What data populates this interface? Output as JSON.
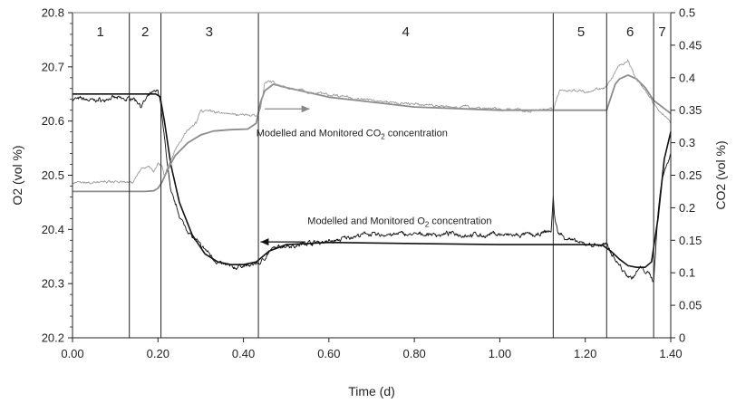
{
  "chart_data": {
    "type": "line",
    "title": "",
    "xlabel": "Time (d)",
    "ylabel_left": "O2 (vol %)",
    "ylabel_right": "CO2 (vol %)",
    "xlim": [
      0,
      1.4
    ],
    "ylim_left": [
      20.2,
      20.8
    ],
    "ylim_right": [
      0,
      0.5
    ],
    "x_ticks": [
      "0.00",
      "0.20",
      "0.40",
      "0.60",
      "0.80",
      "1.00",
      "1.20",
      "1.40"
    ],
    "y_left_ticks": [
      "20.2",
      "20.3",
      "20.4",
      "20.5",
      "20.6",
      "20.7",
      "20.8"
    ],
    "y_right_ticks": [
      "0",
      "0.05",
      "0.1",
      "0.15",
      "0.2",
      "0.25",
      "0.3",
      "0.35",
      "0.4",
      "0.45",
      "0.5"
    ],
    "grid": false,
    "phase_boundaries": [
      0.133,
      0.207,
      0.435,
      1.125,
      1.25,
      1.36
    ],
    "phases": [
      {
        "label": "1",
        "x": 0.065
      },
      {
        "label": "2",
        "x": 0.17
      },
      {
        "label": "3",
        "x": 0.32
      },
      {
        "label": "4",
        "x": 0.78
      },
      {
        "label": "5",
        "x": 1.19
      },
      {
        "label": "6",
        "x": 1.305
      },
      {
        "label": "7",
        "x": 1.38
      }
    ],
    "annotations": [
      {
        "text_main": "Modelled and Monitored CO",
        "sub": "2",
        "text_tail": " concentration",
        "axis": "right",
        "x": 0.43,
        "y": 0.31
      },
      {
        "text_main": "Modelled and Monitored O",
        "sub": "2",
        "text_tail": " concentration",
        "axis": "left",
        "x": 0.55,
        "y": 20.41
      }
    ],
    "arrows": [
      {
        "axis": "right",
        "x1": 0.45,
        "y1": 0.352,
        "x2": 0.555,
        "y2": 0.352,
        "color": "#888888"
      },
      {
        "axis": "left",
        "x1": 0.545,
        "y1": 20.377,
        "x2": 0.44,
        "y2": 20.377,
        "color": "#111111"
      }
    ],
    "series": [
      {
        "name": "Modelled O2",
        "axis": "left",
        "color": "#111111",
        "width": 1.6,
        "noise": 0,
        "x": [
          0,
          0.15,
          0.195,
          0.205,
          0.215,
          0.23,
          0.25,
          0.28,
          0.31,
          0.34,
          0.37,
          0.4,
          0.43,
          0.46,
          0.5,
          0.6,
          0.8,
          1.0,
          1.2,
          1.24,
          1.26,
          1.28,
          1.3,
          1.32,
          1.34,
          1.355,
          1.37,
          1.385,
          1.4
        ],
        "y": [
          20.65,
          20.65,
          20.65,
          20.645,
          20.6,
          20.52,
          20.45,
          20.39,
          20.355,
          20.34,
          20.335,
          20.335,
          20.34,
          20.36,
          20.372,
          20.376,
          20.374,
          20.372,
          20.372,
          20.371,
          20.36,
          20.345,
          20.333,
          20.33,
          20.33,
          20.34,
          20.42,
          20.53,
          20.58
        ]
      },
      {
        "name": "Monitored O2",
        "axis": "left",
        "color": "#111111",
        "width": 0.9,
        "noise": 0.006,
        "x": [
          0,
          0.13,
          0.14,
          0.16,
          0.18,
          0.2,
          0.205,
          0.215,
          0.23,
          0.26,
          0.3,
          0.34,
          0.38,
          0.42,
          0.44,
          0.46,
          0.5,
          0.6,
          0.7,
          0.8,
          0.9,
          1.0,
          1.05,
          1.1,
          1.12,
          1.125,
          1.128,
          1.135,
          1.15,
          1.2,
          1.25,
          1.27,
          1.29,
          1.31,
          1.33,
          1.35,
          1.36,
          1.37,
          1.38,
          1.4
        ],
        "y": [
          20.64,
          20.64,
          20.645,
          20.63,
          20.645,
          20.655,
          20.64,
          20.57,
          20.47,
          20.41,
          20.37,
          20.34,
          20.33,
          20.335,
          20.34,
          20.36,
          20.37,
          20.38,
          20.39,
          20.39,
          20.39,
          20.39,
          20.385,
          20.39,
          20.395,
          20.46,
          20.42,
          20.395,
          20.385,
          20.37,
          20.37,
          20.35,
          20.325,
          20.315,
          20.33,
          20.315,
          20.305,
          20.43,
          20.5,
          20.54
        ]
      },
      {
        "name": "Modelled CO2",
        "axis": "right",
        "color": "#8c8c8c",
        "width": 1.8,
        "noise": 0,
        "x": [
          0,
          0.17,
          0.19,
          0.2,
          0.21,
          0.22,
          0.24,
          0.27,
          0.3,
          0.33,
          0.37,
          0.41,
          0.43,
          0.44,
          0.45,
          0.47,
          0.5,
          0.6,
          0.8,
          1.0,
          1.2,
          1.25,
          1.26,
          1.27,
          1.28,
          1.3,
          1.32,
          1.34,
          1.36,
          1.4
        ],
        "y": [
          0.225,
          0.225,
          0.226,
          0.23,
          0.24,
          0.255,
          0.28,
          0.3,
          0.312,
          0.318,
          0.32,
          0.321,
          0.33,
          0.362,
          0.38,
          0.39,
          0.385,
          0.37,
          0.355,
          0.35,
          0.35,
          0.35,
          0.37,
          0.39,
          0.398,
          0.404,
          0.398,
          0.385,
          0.365,
          0.345
        ]
      },
      {
        "name": "Monitored CO2",
        "axis": "right",
        "color": "#9a9a9a",
        "width": 0.9,
        "noise": 0.003,
        "x": [
          0,
          0.13,
          0.14,
          0.16,
          0.18,
          0.19,
          0.2,
          0.21,
          0.215,
          0.23,
          0.25,
          0.27,
          0.29,
          0.3,
          0.31,
          0.33,
          0.37,
          0.4,
          0.42,
          0.43,
          0.44,
          0.45,
          0.46,
          0.48,
          0.5,
          0.6,
          0.7,
          0.8,
          0.9,
          1.0,
          1.1,
          1.12,
          1.125,
          1.13,
          1.14,
          1.16,
          1.2,
          1.25,
          1.26,
          1.28,
          1.29,
          1.3,
          1.31,
          1.32,
          1.34,
          1.36,
          1.38,
          1.4
        ],
        "y": [
          0.24,
          0.237,
          0.235,
          0.26,
          0.265,
          0.255,
          0.27,
          0.265,
          0.25,
          0.275,
          0.3,
          0.32,
          0.33,
          0.35,
          0.35,
          0.35,
          0.345,
          0.345,
          0.342,
          0.34,
          0.355,
          0.39,
          0.395,
          0.39,
          0.385,
          0.375,
          0.365,
          0.358,
          0.355,
          0.352,
          0.35,
          0.35,
          0.345,
          0.36,
          0.378,
          0.38,
          0.38,
          0.385,
          0.395,
          0.418,
          0.42,
          0.425,
          0.41,
          0.395,
          0.38,
          0.36,
          0.345,
          0.33
        ]
      }
    ]
  }
}
